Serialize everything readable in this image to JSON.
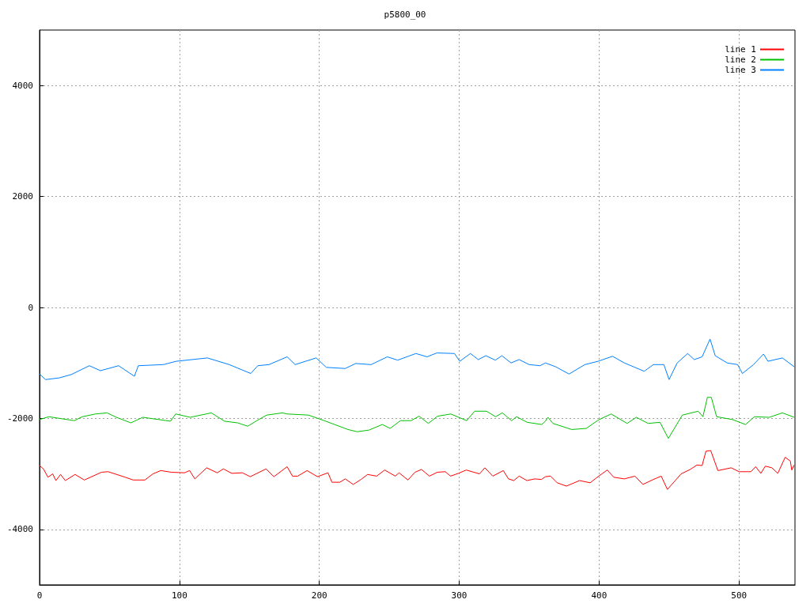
{
  "chart_data": {
    "type": "line",
    "title": "p5800_00",
    "xlim": [
      0,
      540
    ],
    "xticks": [
      0,
      100,
      200,
      300,
      400,
      500
    ],
    "ylim": [
      -5000,
      5000
    ],
    "yticks": [
      -4000,
      -2000,
      0,
      2000,
      4000
    ],
    "grid": true,
    "legend": "top right",
    "marker": "none",
    "line_style": "solid",
    "series": [
      {
        "name": "line 1",
        "color": "#ff0000",
        "x": [
          0,
          2.8,
          6,
          9.4,
          11.7,
          15,
          18.4,
          25.4,
          32,
          44.3,
          49,
          61.2,
          66.9,
          75.3,
          81,
          86.6,
          94.2,
          103.6,
          107.3,
          111,
          119.5,
          127,
          131.4,
          137.4,
          145,
          150.6,
          161.9,
          167.5,
          177,
          180.8,
          184.6,
          191.2,
          198.7,
          206.2,
          209,
          214.7,
          218.5,
          224.2,
          229.8,
          234.5,
          241,
          246.7,
          254.3,
          257,
          263.3,
          268.4,
          273,
          278.7,
          284.4,
          290,
          293.8,
          299.4,
          305,
          314.5,
          318.3,
          324,
          331.5,
          335.2,
          339,
          342.8,
          348.4,
          354,
          358.8,
          361.6,
          365.3,
          370,
          376.6,
          386,
          393.6,
          399.2,
          405.8,
          410.5,
          418,
          425.6,
          431.3,
          438.8,
          444.4,
          448.8,
          458.6,
          465.1,
          469.9,
          473.6,
          476.4,
          479.8,
          484.9,
          494.4,
          500,
          508.5,
          511.9,
          515.6,
          518.8,
          523.5,
          527.7,
          533,
          536.7,
          537.7,
          539.5
        ],
        "values": [
          -2850,
          -2910,
          -3060,
          -3000,
          -3120,
          -3010,
          -3120,
          -3010,
          -3110,
          -2970,
          -2960,
          -3060,
          -3110,
          -3110,
          -3000,
          -2940,
          -2970,
          -2980,
          -2940,
          -3090,
          -2890,
          -2980,
          -2910,
          -2990,
          -2980,
          -3050,
          -2910,
          -3050,
          -2870,
          -3040,
          -3040,
          -2940,
          -3050,
          -2980,
          -3150,
          -3150,
          -3090,
          -3190,
          -3100,
          -3010,
          -3040,
          -2930,
          -3040,
          -2980,
          -3110,
          -2970,
          -2920,
          -3040,
          -2970,
          -2960,
          -3040,
          -2990,
          -2930,
          -3000,
          -2890,
          -3040,
          -2940,
          -3090,
          -3120,
          -3040,
          -3120,
          -3090,
          -3100,
          -3050,
          -3040,
          -3160,
          -3220,
          -3120,
          -3160,
          -3050,
          -2930,
          -3060,
          -3090,
          -3040,
          -3190,
          -3100,
          -3040,
          -3280,
          -3000,
          -2920,
          -2840,
          -2850,
          -2590,
          -2580,
          -2940,
          -2890,
          -2960,
          -2960,
          -2870,
          -2990,
          -2860,
          -2890,
          -2990,
          -2700,
          -2770,
          -2930,
          -2840
        ]
      },
      {
        "name": "line 2",
        "color": "#00c000",
        "x": [
          0,
          6.6,
          24.8,
          30.5,
          39.9,
          48.3,
          54.9,
          65.3,
          73.8,
          93.6,
          97.3,
          107.7,
          122.8,
          132.2,
          141.6,
          148.8,
          156.7,
          162.4,
          173.6,
          177,
          192.2,
          203.5,
          220.5,
          227,
          235.5,
          245,
          250.6,
          258,
          265.6,
          271.3,
          277.9,
          284.5,
          294,
          305.3,
          311,
          319.5,
          326,
          330.8,
          337.4,
          341,
          348.6,
          359,
          361.6,
          363.4,
          367,
          380.4,
          390.8,
          400,
          408.6,
          420,
          426.6,
          435,
          443.5,
          449.5,
          453.8,
          459.5,
          470.8,
          474.2,
          477.4,
          480.2,
          484,
          495.3,
          504.7,
          511,
          521.6,
          531,
          539.5
        ],
        "values": [
          -2020,
          -1970,
          -2040,
          -1970,
          -1920,
          -1900,
          -1980,
          -2080,
          -1980,
          -2050,
          -1920,
          -1980,
          -1900,
          -2050,
          -2080,
          -2140,
          -2020,
          -1940,
          -1900,
          -1920,
          -1940,
          -2040,
          -2200,
          -2240,
          -2210,
          -2110,
          -2180,
          -2040,
          -2040,
          -1960,
          -2090,
          -1960,
          -1920,
          -2040,
          -1870,
          -1870,
          -1970,
          -1900,
          -2040,
          -1970,
          -2070,
          -2110,
          -2050,
          -1980,
          -2090,
          -2200,
          -2180,
          -2020,
          -1920,
          -2090,
          -1980,
          -2090,
          -2070,
          -2360,
          -2180,
          -1940,
          -1870,
          -1970,
          -1620,
          -1620,
          -1970,
          -2020,
          -2110,
          -1970,
          -1980,
          -1900,
          -1980
        ]
      },
      {
        "name": "line 3",
        "color": "#0080ff",
        "x": [
          0,
          4.3,
          14,
          22.6,
          35.6,
          43.5,
          56.5,
          67.8,
          70.6,
          88.5,
          97.7,
          120,
          135.6,
          151,
          156,
          164,
          177,
          182.7,
          197.7,
          205,
          218.5,
          226,
          237,
          248.6,
          256,
          269,
          277,
          284,
          296.6,
          300.4,
          308,
          313.6,
          319,
          325.8,
          330.5,
          337,
          342.8,
          350,
          357.8,
          361.6,
          369,
          378.5,
          389.8,
          399.3,
          409.6,
          418,
          432.2,
          438.8,
          446.3,
          450,
          455.8,
          463.3,
          468,
          473.6,
          479.3,
          483,
          491.5,
          499,
          502.4,
          510.4,
          517.5,
          520.7,
          531,
          539.5
        ],
        "values": [
          -1200,
          -1300,
          -1270,
          -1210,
          -1050,
          -1140,
          -1050,
          -1240,
          -1050,
          -1030,
          -970,
          -910,
          -1030,
          -1190,
          -1050,
          -1030,
          -890,
          -1030,
          -910,
          -1080,
          -1100,
          -1010,
          -1030,
          -890,
          -950,
          -830,
          -890,
          -820,
          -830,
          -970,
          -830,
          -940,
          -870,
          -950,
          -870,
          -1000,
          -940,
          -1030,
          -1050,
          -1000,
          -1070,
          -1200,
          -1030,
          -970,
          -880,
          -1000,
          -1150,
          -1030,
          -1030,
          -1300,
          -1000,
          -830,
          -940,
          -890,
          -570,
          -870,
          -1000,
          -1030,
          -1190,
          -1030,
          -840,
          -970,
          -910,
          -1070
        ]
      }
    ]
  }
}
